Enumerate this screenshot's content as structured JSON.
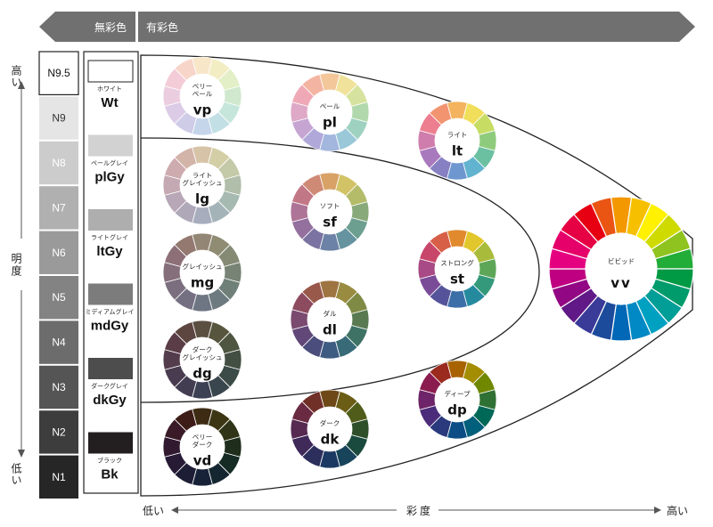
{
  "header": {
    "achromatic_label": "無彩色",
    "chromatic_label": "有彩色"
  },
  "lightness_axis": {
    "high_label": "高い",
    "title": "明度",
    "low_label": "低い"
  },
  "saturation_axis": {
    "low_label": "低い",
    "title": "彩度",
    "high_label": "高い"
  },
  "neutrals": [
    {
      "code": "N9.5",
      "color": "#ffffff",
      "text_color": "#111111"
    },
    {
      "code": "N9",
      "color": "#e5e5e5",
      "text_color": "#333333"
    },
    {
      "code": "N8",
      "color": "#cccccc",
      "text_color": "#ffffff"
    },
    {
      "code": "N7",
      "color": "#b0b0b0",
      "text_color": "#ffffff"
    },
    {
      "code": "N6",
      "color": "#9a9a9a",
      "text_color": "#ffffff"
    },
    {
      "code": "N5",
      "color": "#838383",
      "text_color": "#ffffff"
    },
    {
      "code": "N4",
      "color": "#6c6c6c",
      "text_color": "#ffffff"
    },
    {
      "code": "N3",
      "color": "#555555",
      "text_color": "#ffffff"
    },
    {
      "code": "N2",
      "color": "#3d3d3d",
      "text_color": "#ffffff"
    },
    {
      "code": "N1",
      "color": "#262626",
      "text_color": "#ffffff"
    }
  ],
  "neutral_names": [
    {
      "jp": "ホワイト",
      "abbr": "Wt",
      "color": "#ffffff"
    },
    {
      "jp": "ペールグレイ",
      "abbr": "plGy",
      "color": "#d2d2d2"
    },
    {
      "jp": "ライトグレイ",
      "abbr": "ltGy",
      "color": "#aeaeae"
    },
    {
      "jp": "ミディアムグレイ",
      "abbr": "mdGy",
      "color": "#7c7c7c"
    },
    {
      "jp": "ダークグレイ",
      "abbr": "dkGy",
      "color": "#4d4d4d"
    },
    {
      "jp": "ブラック",
      "abbr": "Bk",
      "color": "#231f20"
    }
  ],
  "tones": [
    {
      "id": "vp",
      "jp_lines": [
        "ベリー",
        "ペール"
      ],
      "abbr": "vp",
      "colors": [
        "#f7e6c8",
        "#f3edc4",
        "#e3efc6",
        "#d0e9ce",
        "#c6e6db",
        "#c3dfe6",
        "#c5d5ea",
        "#cfcce8",
        "#dccbe6",
        "#ebcde0",
        "#f4ccd8",
        "#f7d5c9"
      ]
    },
    {
      "id": "pl",
      "jp_lines": [
        "ペール"
      ],
      "abbr": "pl",
      "colors": [
        "#f3c799",
        "#f0e29a",
        "#d6e39f",
        "#b1d8ac",
        "#9fd1c1",
        "#9bc8d9",
        "#a2b6de",
        "#b0a8d8",
        "#c6a5d3",
        "#dea9c6",
        "#efa9b6",
        "#f3b5a1"
      ]
    },
    {
      "id": "lt",
      "jp_lines": [
        "ライト"
      ],
      "abbr": "lt",
      "colors": [
        "#f4b35e",
        "#f1df5b",
        "#c7dc63",
        "#8fcb7c",
        "#6cc0a2",
        "#62b3cf",
        "#6e97d0",
        "#8780c3",
        "#a979bd",
        "#cf7dac",
        "#ec7e8f",
        "#f29470"
      ]
    },
    {
      "id": "lg",
      "jp_lines": [
        "ライト",
        "グレイッシュ"
      ],
      "abbr": "lg",
      "colors": [
        "#d7c3a7",
        "#d3cea6",
        "#c4c9a7",
        "#b1bea9",
        "#a6bab2",
        "#a4b3b8",
        "#a7adbc",
        "#aea8b9",
        "#b8a7b7",
        "#c4a9b2",
        "#cdabaf",
        "#d3b4a9"
      ]
    },
    {
      "id": "sf",
      "jp_lines": [
        "ソフト"
      ],
      "abbr": "sf",
      "colors": [
        "#d8a266",
        "#d3c367",
        "#b4bc6a",
        "#88aa7a",
        "#6c9f90",
        "#65939f",
        "#6c82a6",
        "#7b73a1",
        "#93709e",
        "#ae7497",
        "#c27787",
        "#cf8a75"
      ]
    },
    {
      "id": "st",
      "jp_lines": [
        "ストロング"
      ],
      "abbr": "st",
      "colors": [
        "#e08a2d",
        "#e1c72b",
        "#a9bb3a",
        "#5da657",
        "#34997b",
        "#268a9f",
        "#3c6ea8",
        "#55549b",
        "#7a4c98",
        "#a84a86",
        "#c8466a",
        "#d75f48"
      ]
    },
    {
      "id": "vv",
      "jp_lines": [
        "ビビッド"
      ],
      "abbr": "vv",
      "colors": [
        "#f39800",
        "#f6c000",
        "#fff100",
        "#cfdb00",
        "#8fc31f",
        "#22ac38",
        "#009944",
        "#009b6b",
        "#009e96",
        "#00a0c1",
        "#0089c4",
        "#0068b7",
        "#1d4b9b",
        "#3a3a98",
        "#601986",
        "#920783",
        "#be0081",
        "#e4007f",
        "#e5006a",
        "#e60044",
        "#e60012",
        "#ea5514"
      ]
    },
    {
      "id": "mg",
      "jp_lines": [
        "グレイッシュ"
      ],
      "abbr": "mg",
      "colors": [
        "#948675",
        "#8f8c73",
        "#848a74",
        "#778375",
        "#6f8079",
        "#6d7a7f",
        "#6e7583",
        "#746f81",
        "#7b6e7f",
        "#856f7a",
        "#8d7077",
        "#937970"
      ]
    },
    {
      "id": "dl",
      "jp_lines": [
        "ダル"
      ],
      "abbr": "dl",
      "colors": [
        "#9e7441",
        "#998c40",
        "#7f8a44",
        "#5a7a52",
        "#3e7264",
        "#386a78",
        "#3e5b82",
        "#4b4d7c",
        "#614878",
        "#7a4a71",
        "#8d4b60",
        "#98594b"
      ]
    },
    {
      "id": "dg",
      "jp_lines": [
        "ダーク",
        "グレイッシュ"
      ],
      "abbr": "dg",
      "colors": [
        "#5b4f41",
        "#58553f",
        "#4e5541",
        "#434f43",
        "#3c4b47",
        "#3a464e",
        "#3c4153",
        "#433d52",
        "#4a3c50",
        "#533c4b",
        "#5a3d47",
        "#5d4540"
      ]
    },
    {
      "id": "dk",
      "jp_lines": [
        "ダーク"
      ],
      "abbr": "dk",
      "colors": [
        "#6e4917",
        "#6b5d15",
        "#4f5c1a",
        "#2e4f2a",
        "#1a4a3d",
        "#17445a",
        "#1c3963",
        "#2c2e5c",
        "#3f2a5a",
        "#562a51",
        "#6a2a42",
        "#702f27"
      ]
    },
    {
      "id": "dp",
      "jp_lines": [
        "ディープ"
      ],
      "abbr": "dp",
      "colors": [
        "#a86300",
        "#a48d00",
        "#6f8800",
        "#2f7134",
        "#006857",
        "#005f7a",
        "#0b4d84",
        "#2a3a7c",
        "#4b2c7a",
        "#6e2468",
        "#8b1c4f",
        "#9b2a1f"
      ]
    },
    {
      "id": "vd",
      "jp_lines": [
        "ベリー",
        "ダーク"
      ],
      "abbr": "vd",
      "colors": [
        "#3e2b14",
        "#3c3614",
        "#2f3516",
        "#1f2e1c",
        "#152b24",
        "#142731",
        "#172239",
        "#1e1d36",
        "#271a35",
        "#311a30",
        "#3a1a27",
        "#3d1c18"
      ]
    }
  ]
}
